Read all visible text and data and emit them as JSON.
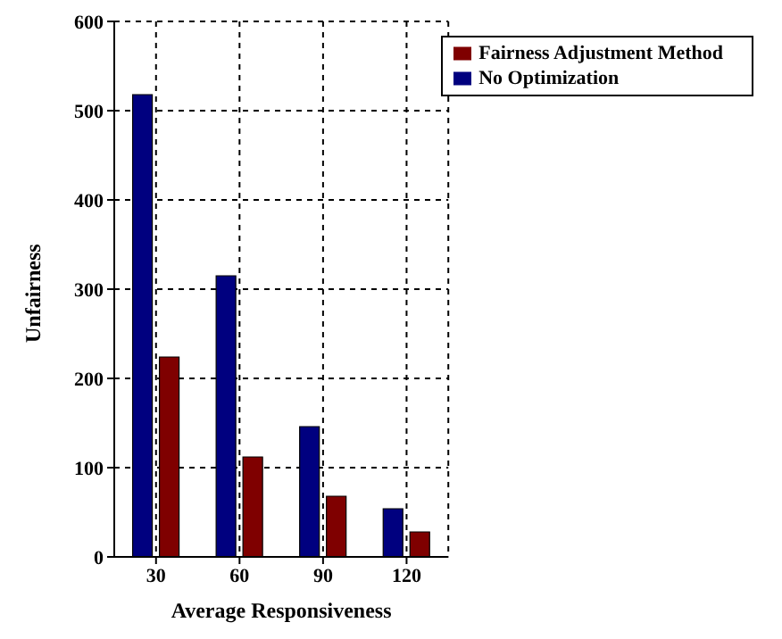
{
  "chart_data": {
    "type": "bar",
    "xlabel": "Average Responsiveness",
    "ylabel": "Unfairness",
    "categories": [
      "30",
      "60",
      "90",
      "120"
    ],
    "series": [
      {
        "name": "No Optimization",
        "color": "#00007f",
        "values": [
          518,
          315,
          146,
          54
        ]
      },
      {
        "name": "Fairness Adjustment Method",
        "color": "#7f0000",
        "values": [
          224,
          112,
          68,
          28
        ]
      }
    ],
    "ylim": [
      0,
      600
    ],
    "yticks": [
      0,
      100,
      200,
      300,
      400,
      500,
      600
    ],
    "grid": true,
    "legend": "top right"
  }
}
